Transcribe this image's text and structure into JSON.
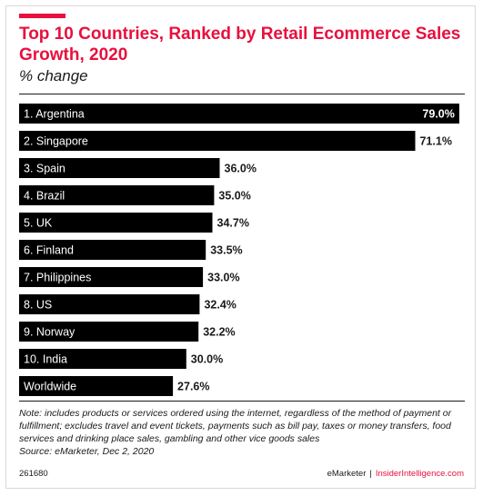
{
  "title": "Top 10 Countries, Ranked by Retail Ecommerce Sales Growth, 2020",
  "subtitle": "% change",
  "note": "Note: includes products or services ordered using the internet, regardless of the method of payment or fulfillment; excludes travel and event tickets, payments such as bill pay, taxes or money transfers, food services and drinking place sales, gambling and other vice goods sales",
  "source": "Source: eMarketer, Dec 2, 2020",
  "chart_id": "261680",
  "brand": {
    "left": "eMarketer",
    "separator": "|",
    "right": "InsiderIntelligence.com"
  },
  "colors": {
    "accent": "#e8103e",
    "bar": "#000000",
    "bar_label": "#ffffff",
    "value_label": "#1a1a1a"
  },
  "chart_data": {
    "type": "bar",
    "orientation": "horizontal",
    "categories": [
      "1. Argentina",
      "2. Singapore",
      "3. Spain",
      "4. Brazil",
      "5. UK",
      "6. Finland",
      "7. Philippines",
      "8. US",
      "9. Norway",
      "10. India",
      "Worldwide"
    ],
    "values": [
      79.0,
      71.1,
      36.0,
      35.0,
      34.7,
      33.5,
      33.0,
      32.4,
      32.2,
      30.0,
      27.6
    ],
    "value_labels": [
      "79.0%",
      "71.1%",
      "36.0%",
      "35.0%",
      "34.7%",
      "33.5%",
      "33.0%",
      "32.4%",
      "32.2%",
      "30.0%",
      "27.6%"
    ],
    "xlim": [
      0,
      80
    ],
    "grid": false
  }
}
